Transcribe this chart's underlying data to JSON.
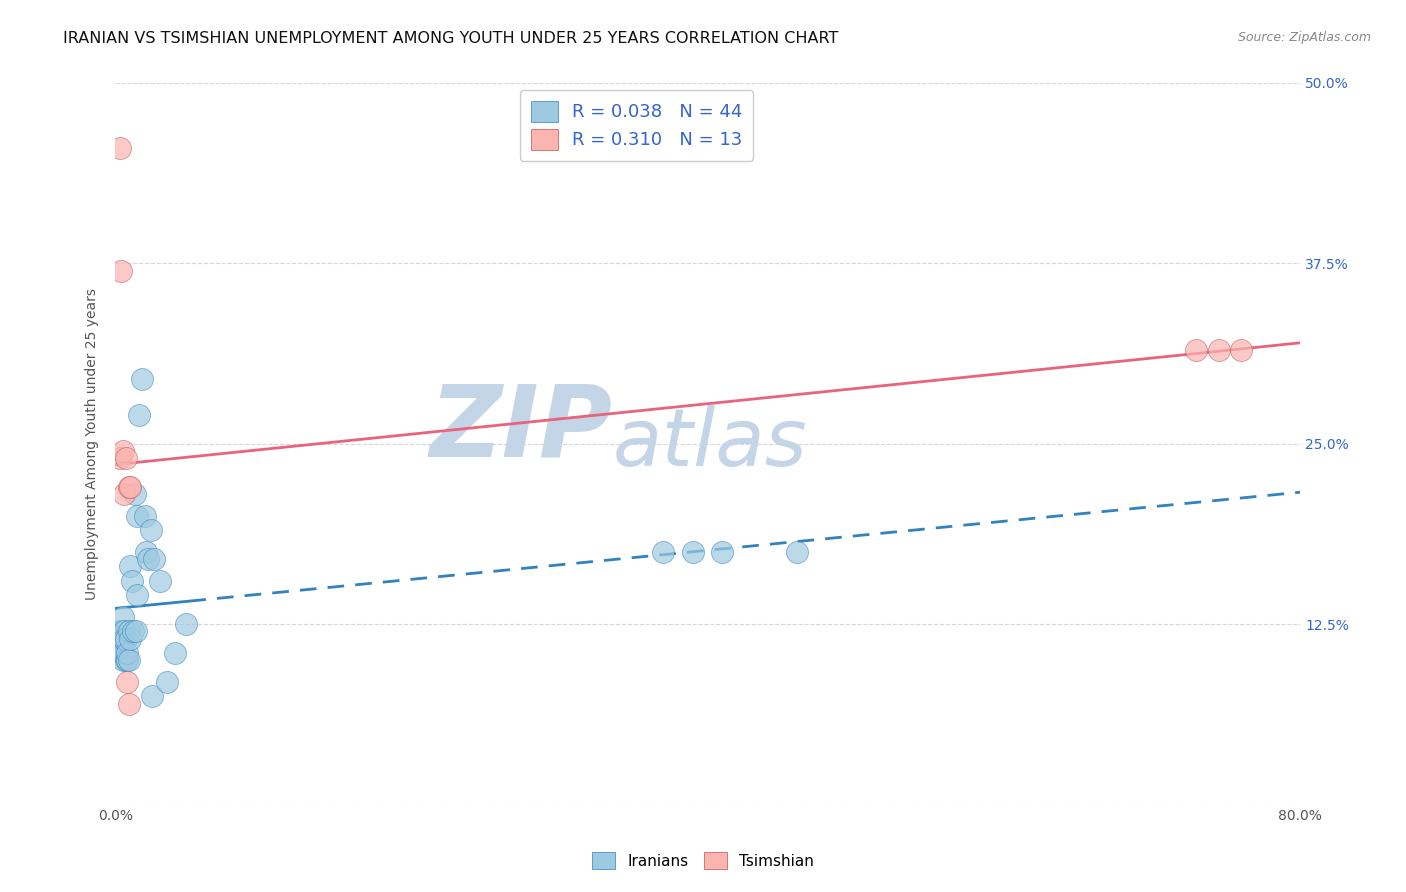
{
  "title": "IRANIAN VS TSIMSHIAN UNEMPLOYMENT AMONG YOUTH UNDER 25 YEARS CORRELATION CHART",
  "source": "Source: ZipAtlas.com",
  "ylabel": "Unemployment Among Youth under 25 years",
  "xlim": [
    0.0,
    0.8
  ],
  "ylim": [
    0.0,
    0.5
  ],
  "yticks": [
    0.0,
    0.125,
    0.25,
    0.375,
    0.5
  ],
  "ytick_labels": [
    "",
    "12.5%",
    "25.0%",
    "37.5%",
    "50.0%"
  ],
  "iranians_x": [
    0.002,
    0.003,
    0.003,
    0.004,
    0.004,
    0.004,
    0.005,
    0.005,
    0.005,
    0.005,
    0.005,
    0.006,
    0.006,
    0.006,
    0.007,
    0.007,
    0.008,
    0.008,
    0.009,
    0.009,
    0.01,
    0.01,
    0.011,
    0.012,
    0.013,
    0.014,
    0.015,
    0.015,
    0.016,
    0.018,
    0.02,
    0.021,
    0.022,
    0.024,
    0.025,
    0.026,
    0.03,
    0.035,
    0.04,
    0.048,
    0.37,
    0.39,
    0.41,
    0.46
  ],
  "iranians_y": [
    0.115,
    0.115,
    0.12,
    0.105,
    0.115,
    0.12,
    0.1,
    0.115,
    0.12,
    0.13,
    0.105,
    0.115,
    0.12,
    0.115,
    0.1,
    0.115,
    0.1,
    0.105,
    0.1,
    0.12,
    0.115,
    0.165,
    0.155,
    0.12,
    0.215,
    0.12,
    0.145,
    0.2,
    0.27,
    0.295,
    0.2,
    0.175,
    0.17,
    0.19,
    0.075,
    0.17,
    0.155,
    0.085,
    0.105,
    0.125,
    0.175,
    0.175,
    0.175,
    0.175
  ],
  "tsimshian_x": [
    0.003,
    0.003,
    0.004,
    0.005,
    0.006,
    0.007,
    0.008,
    0.009,
    0.009,
    0.01,
    0.73,
    0.745,
    0.76
  ],
  "tsimshian_y": [
    0.455,
    0.24,
    0.37,
    0.245,
    0.215,
    0.24,
    0.085,
    0.07,
    0.22,
    0.22,
    0.315,
    0.315,
    0.315
  ],
  "R_iranians": 0.038,
  "N_iranians": 44,
  "R_tsimshian": 0.31,
  "N_tsimshian": 13,
  "color_iranians": "#9ecae1",
  "color_tsimshian": "#fbb4ae",
  "line_color_iranians": "#3182bd",
  "line_color_tsimshian": "#e8647a",
  "legend_value_color": "#3366cc",
  "bg_color": "#ffffff",
  "grid_color": "#cccccc",
  "title_fontsize": 11.5,
  "axis_label_fontsize": 10,
  "tick_fontsize": 10,
  "legend_fontsize": 13,
  "watermark_zip_color": "#c5d5e8",
  "watermark_atlas_color": "#c5d5e8"
}
